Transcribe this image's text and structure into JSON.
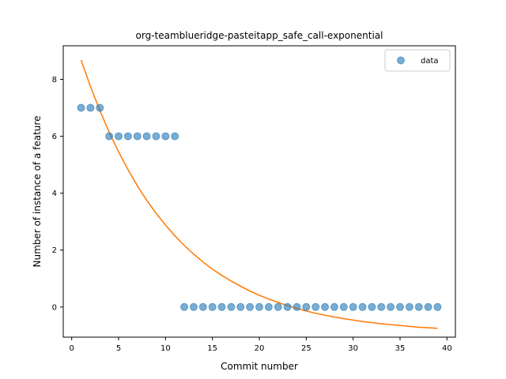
{
  "chart_data": {
    "type": "scatter",
    "title": "org-teamblueridge-pasteitapp_safe_call-exponential",
    "xlabel": "Commit number",
    "ylabel": "Number of instance of a feature",
    "xlim": [
      -0.9,
      40.9
    ],
    "ylim": [
      -1.06,
      9.18
    ],
    "xticks": [
      0,
      5,
      10,
      15,
      20,
      25,
      30,
      35,
      40
    ],
    "yticks": [
      0,
      2,
      4,
      6,
      8
    ],
    "legend": {
      "position": "top-right",
      "entries": [
        "data"
      ]
    },
    "grid": false,
    "series": [
      {
        "name": "data",
        "kind": "scatter",
        "color": "#1f77b4",
        "x": [
          1,
          2,
          3,
          4,
          5,
          6,
          7,
          8,
          9,
          10,
          11,
          12,
          13,
          14,
          15,
          16,
          17,
          18,
          19,
          20,
          21,
          22,
          23,
          24,
          25,
          26,
          27,
          28,
          29,
          30,
          31,
          32,
          33,
          34,
          35,
          36,
          37,
          38,
          39
        ],
        "y": [
          7,
          7,
          7,
          6,
          6,
          6,
          6,
          6,
          6,
          6,
          6,
          0,
          0,
          0,
          0,
          0,
          0,
          0,
          0,
          0,
          0,
          0,
          0,
          0,
          0,
          0,
          0,
          0,
          0,
          0,
          0,
          0,
          0,
          0,
          0,
          0,
          0,
          0,
          0
        ]
      },
      {
        "kind": "line",
        "color": "#ff7f0e",
        "x": [
          1,
          2,
          3,
          4,
          5,
          6,
          7,
          8,
          9,
          10,
          11,
          12,
          13,
          14,
          15,
          16,
          17,
          18,
          19,
          20,
          21,
          22,
          23,
          24,
          25,
          26,
          27,
          28,
          29,
          30,
          31,
          32,
          33,
          34,
          35,
          36,
          37,
          38,
          39
        ],
        "y": [
          8.68,
          7.75,
          6.91,
          6.14,
          5.45,
          4.83,
          4.26,
          3.75,
          3.29,
          2.88,
          2.5,
          2.16,
          1.86,
          1.58,
          1.33,
          1.11,
          0.91,
          0.73,
          0.56,
          0.41,
          0.28,
          0.16,
          0.05,
          -0.05,
          -0.14,
          -0.22,
          -0.29,
          -0.35,
          -0.41,
          -0.46,
          -0.51,
          -0.55,
          -0.59,
          -0.62,
          -0.65,
          -0.68,
          -0.71,
          -0.73,
          -0.75
        ]
      }
    ]
  }
}
